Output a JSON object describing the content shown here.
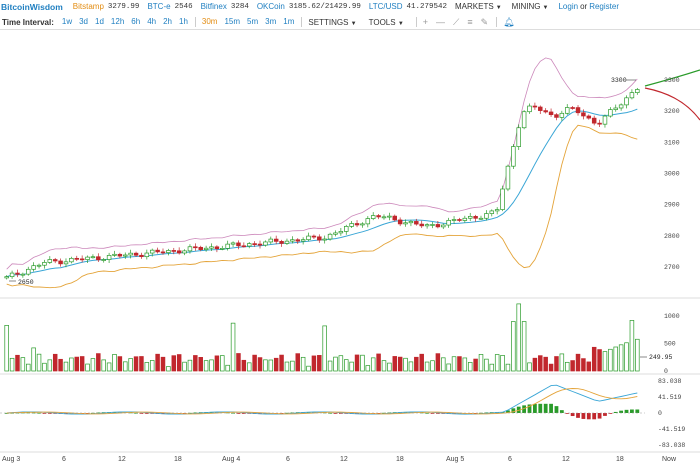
{
  "topbar": {
    "logo": "BitcoinWisdom",
    "exchanges": [
      {
        "name": "Bitstamp",
        "price": "3279.99",
        "color": "orange"
      },
      {
        "name": "BTC-e",
        "price": "2546",
        "color": "blue"
      },
      {
        "name": "Bitfinex",
        "price": "3284",
        "color": "blue"
      },
      {
        "name": "OKCoin",
        "price": "3185.62/21429.99",
        "color": "blue"
      },
      {
        "name": "LTC/USD",
        "price": "41.279542",
        "color": "blue"
      }
    ],
    "markets": "MARKETS",
    "mining": "MINING",
    "login": "Login",
    "or": "or",
    "register": "Register"
  },
  "toolbar": {
    "label": "Time Interval:",
    "intervals": [
      "1w",
      "3d",
      "1d",
      "12h",
      "6h",
      "4h",
      "2h",
      "1h",
      "30m",
      "15m",
      "5m",
      "3m",
      "1m"
    ],
    "active_interval": "30m",
    "settings": "SETTINGS",
    "tools": "TOOLS"
  },
  "chart": {
    "price_labels": [
      "3300",
      "3200",
      "3100",
      "3000",
      "2900",
      "2800",
      "2700"
    ],
    "current_price": "3300",
    "low_marker": "2650",
    "volume_labels": [
      "1000",
      "500",
      "0"
    ],
    "volume_marker": "249.95",
    "macd_labels": [
      "83.038",
      "41.519",
      "0",
      "-41.519",
      "-83.038"
    ],
    "x_labels": [
      "Aug 3",
      "6",
      "12",
      "18",
      "Aug 4",
      "6",
      "12",
      "18",
      "Aug 5",
      "6",
      "12",
      "18",
      "Now"
    ]
  },
  "colors": {
    "up": "#2a9b2a",
    "down": "#c1272d",
    "blue": "#1f7fc1",
    "orange": "#e38d13",
    "ma": "#3aa6d6",
    "band": "#cc88bb",
    "lower": "#e4a43a"
  }
}
